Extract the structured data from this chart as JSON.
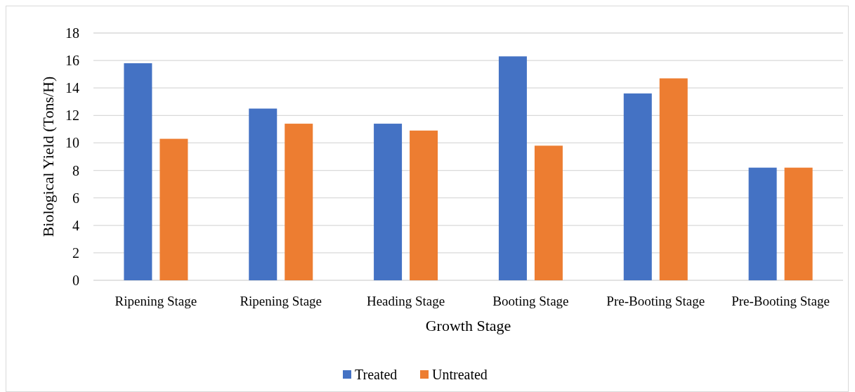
{
  "chart_data": {
    "type": "bar",
    "xlabel": "Growth Stage",
    "ylabel": "Biological Yield (Tons/H)",
    "categories": [
      "Ripening Stage",
      "Ripening Stage",
      "Heading Stage",
      "Booting Stage",
      "Pre-Booting Stage",
      "Pre-Booting Stage"
    ],
    "series": [
      {
        "name": "Treated",
        "color": "#4472c4",
        "values": [
          15.8,
          12.5,
          11.4,
          16.3,
          13.6,
          8.2
        ]
      },
      {
        "name": "Untreated",
        "color": "#ed7d31",
        "values": [
          10.3,
          11.4,
          10.9,
          9.8,
          14.7,
          8.2
        ]
      }
    ],
    "ylim": [
      0,
      18
    ],
    "yticks": [
      0,
      2,
      4,
      6,
      8,
      10,
      12,
      14,
      16,
      18
    ],
    "grid": true,
    "legend": "bottom"
  }
}
